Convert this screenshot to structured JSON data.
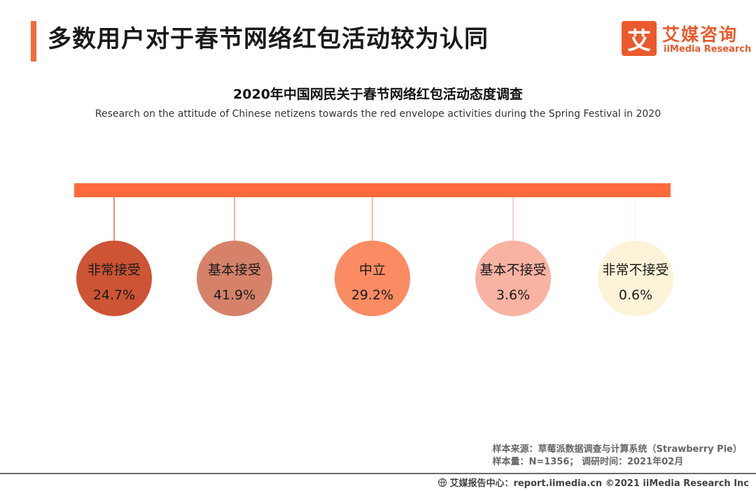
{
  "header": {
    "title": "多数用户对于春节网络红包活动较为认同"
  },
  "logo": {
    "mark": "艾",
    "name_cn": "艾媒咨询",
    "name_en": "iiMedia Research"
  },
  "colors": {
    "accent": "#f26b3a",
    "bar": "#ff6a3d",
    "logo": "#ea5a2c"
  },
  "chart_data": {
    "type": "bubble-legend",
    "title": "2020年中国网民关于春节网络红包活动态度调查",
    "subtitle": "Research on the attitude of Chinese netizens towards the red envelope activities during the Spring Festival in 2020",
    "unit": "%",
    "categories": [
      "非常接受",
      "基本接受",
      "中立",
      "基本不接受",
      "非常不接受"
    ],
    "values": [
      24.7,
      41.9,
      29.2,
      3.6,
      0.6
    ],
    "labels": [
      "24.7%",
      "41.9%",
      "29.2%",
      "3.6%",
      "0.6%"
    ],
    "colors": [
      "#cd5434",
      "#d6826a",
      "#fb8b63",
      "#f9b3a3",
      "#fdf3d8"
    ]
  },
  "footer": {
    "source_line1": "样本来源：草莓派数据调查与计算系统（Strawberry Pie）",
    "source_line2": "样本量：N=1356； 调研时间：2021年02月",
    "credit": "艾媒报告中心：report.iimedia.cn   ©2021  iiMedia Research  Inc"
  }
}
